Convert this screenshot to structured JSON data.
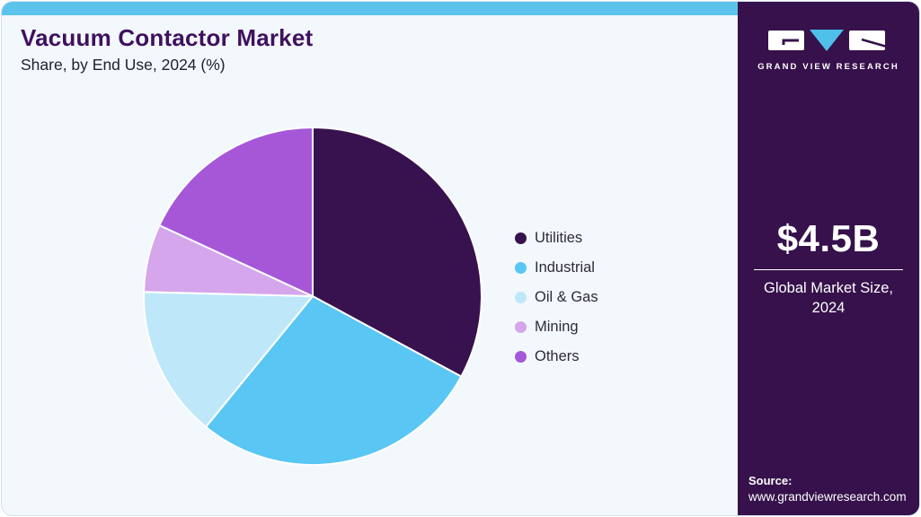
{
  "page": {
    "accent_bar_color": "#5CC3EC",
    "main_bg": "#F2F8FC",
    "sidebar_bg": "#36114B"
  },
  "header": {
    "title": "Vacuum Contactor Market",
    "subtitle": "Share, by End Use, 2024 (%)"
  },
  "chart_data": {
    "type": "pie",
    "title": "Vacuum Contactor Market Share, by End Use, 2024 (%)",
    "labels": [
      "Utilities",
      "Industrial",
      "Oil & Gas",
      "Mining",
      "Others"
    ],
    "values": [
      32.9,
      28.0,
      14.5,
      6.5,
      18.1
    ],
    "unit": "%",
    "colors": [
      "#38124E",
      "#59C6F3",
      "#BEE8FA",
      "#D5A6EC",
      "#A657D8"
    ],
    "start_angle": "top",
    "direction": "clockwise",
    "legend_position": "right",
    "slice_border_color": "#ffffff"
  },
  "sidebar": {
    "logo": {
      "brand": "GRAND VIEW RESEARCH",
      "triangle_color": "#4FC0EA"
    },
    "stat": {
      "value": "$4.5B",
      "label_line1": "Global Market Size,",
      "label_line2": "2024"
    },
    "source": {
      "label": "Source:",
      "url": "www.grandviewresearch.com"
    }
  }
}
